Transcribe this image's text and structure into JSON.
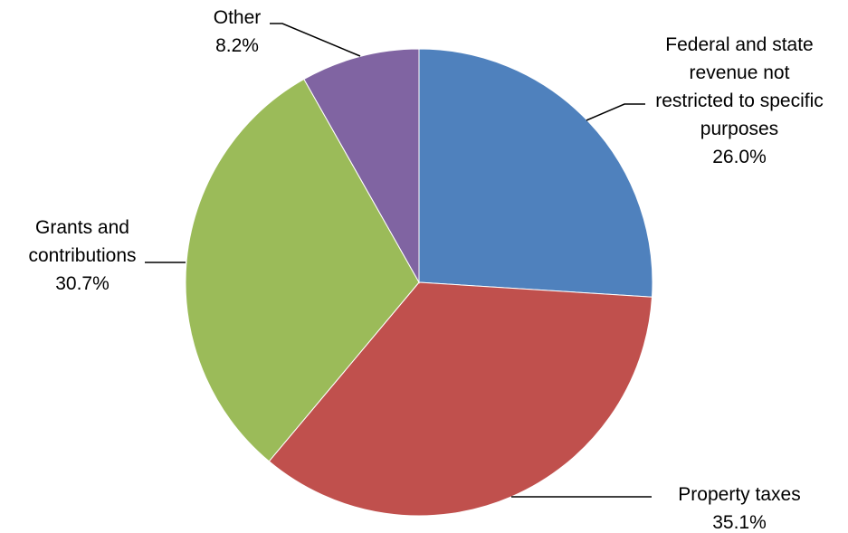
{
  "chart_data": {
    "type": "pie",
    "title": "",
    "start_angle_deg": 0,
    "direction": "clockwise",
    "slices": [
      {
        "label_lines": [
          "Federal and state",
          "revenue not",
          "restricted to specific",
          "purposes"
        ],
        "percent_text": "26.0%",
        "value": 26.0,
        "color": "#4F81BD"
      },
      {
        "label_lines": [
          "Property taxes"
        ],
        "percent_text": "35.1%",
        "value": 35.1,
        "color": "#C0504D"
      },
      {
        "label_lines": [
          "Grants and",
          "contributions"
        ],
        "percent_text": "30.7%",
        "value": 30.7,
        "color": "#9BBB59"
      },
      {
        "label_lines": [
          "Other"
        ],
        "percent_text": "8.2%",
        "value": 8.2,
        "color": "#8064A2"
      }
    ]
  }
}
